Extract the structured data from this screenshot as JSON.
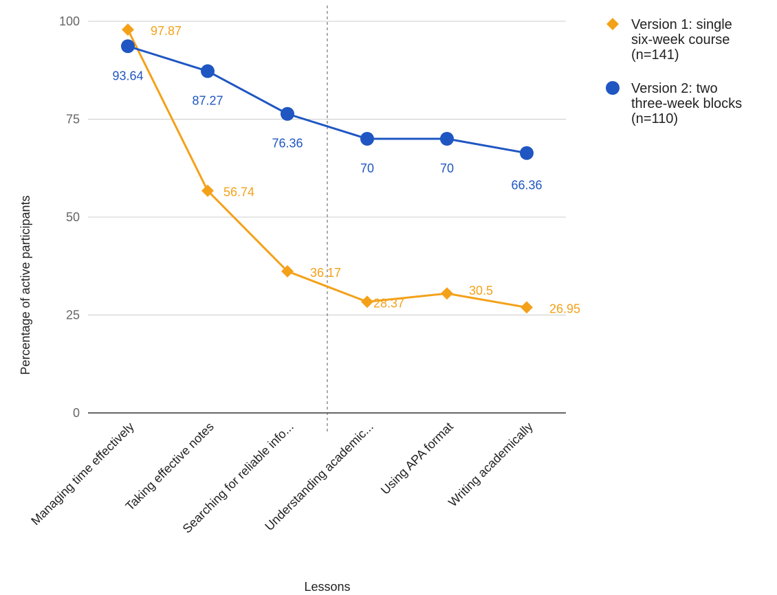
{
  "chart_data": {
    "type": "line",
    "title": "",
    "xlabel": "Lessons",
    "ylabel": "Percentage of active participants",
    "ylim": [
      0,
      100
    ],
    "yticks": [
      0,
      25,
      50,
      75,
      100
    ],
    "grid": true,
    "legend_position": "right",
    "categories": [
      "Managing time effectively",
      "Taking effective notes",
      "Searching for reliable info...",
      "Understanding academic...",
      "Using APA format",
      "Writing academically"
    ],
    "divider_after_index": 2,
    "series": [
      {
        "name": "Version 1: single six-week course (n=141)",
        "legend_lines": [
          "Version 1: single",
          "six-week course",
          "(n=141)"
        ],
        "color": "#f4a11a",
        "marker": "diamond",
        "values": [
          97.87,
          56.74,
          36.17,
          28.37,
          30.5,
          26.95
        ],
        "labels": [
          "97.87",
          "56.74",
          "36.17",
          "28.37",
          "30.5",
          "26.95"
        ]
      },
      {
        "name": "Version 2: two three-week blocks (n=110)",
        "legend_lines": [
          "Version 2: two",
          "three-week blocks",
          "(n=110)"
        ],
        "color": "#1f56c2",
        "marker": "circle",
        "values": [
          93.64,
          87.27,
          76.36,
          70,
          70,
          66.36
        ],
        "labels": [
          "93.64",
          "87.27",
          "76.36",
          "70",
          "70",
          "66.36"
        ]
      }
    ]
  }
}
